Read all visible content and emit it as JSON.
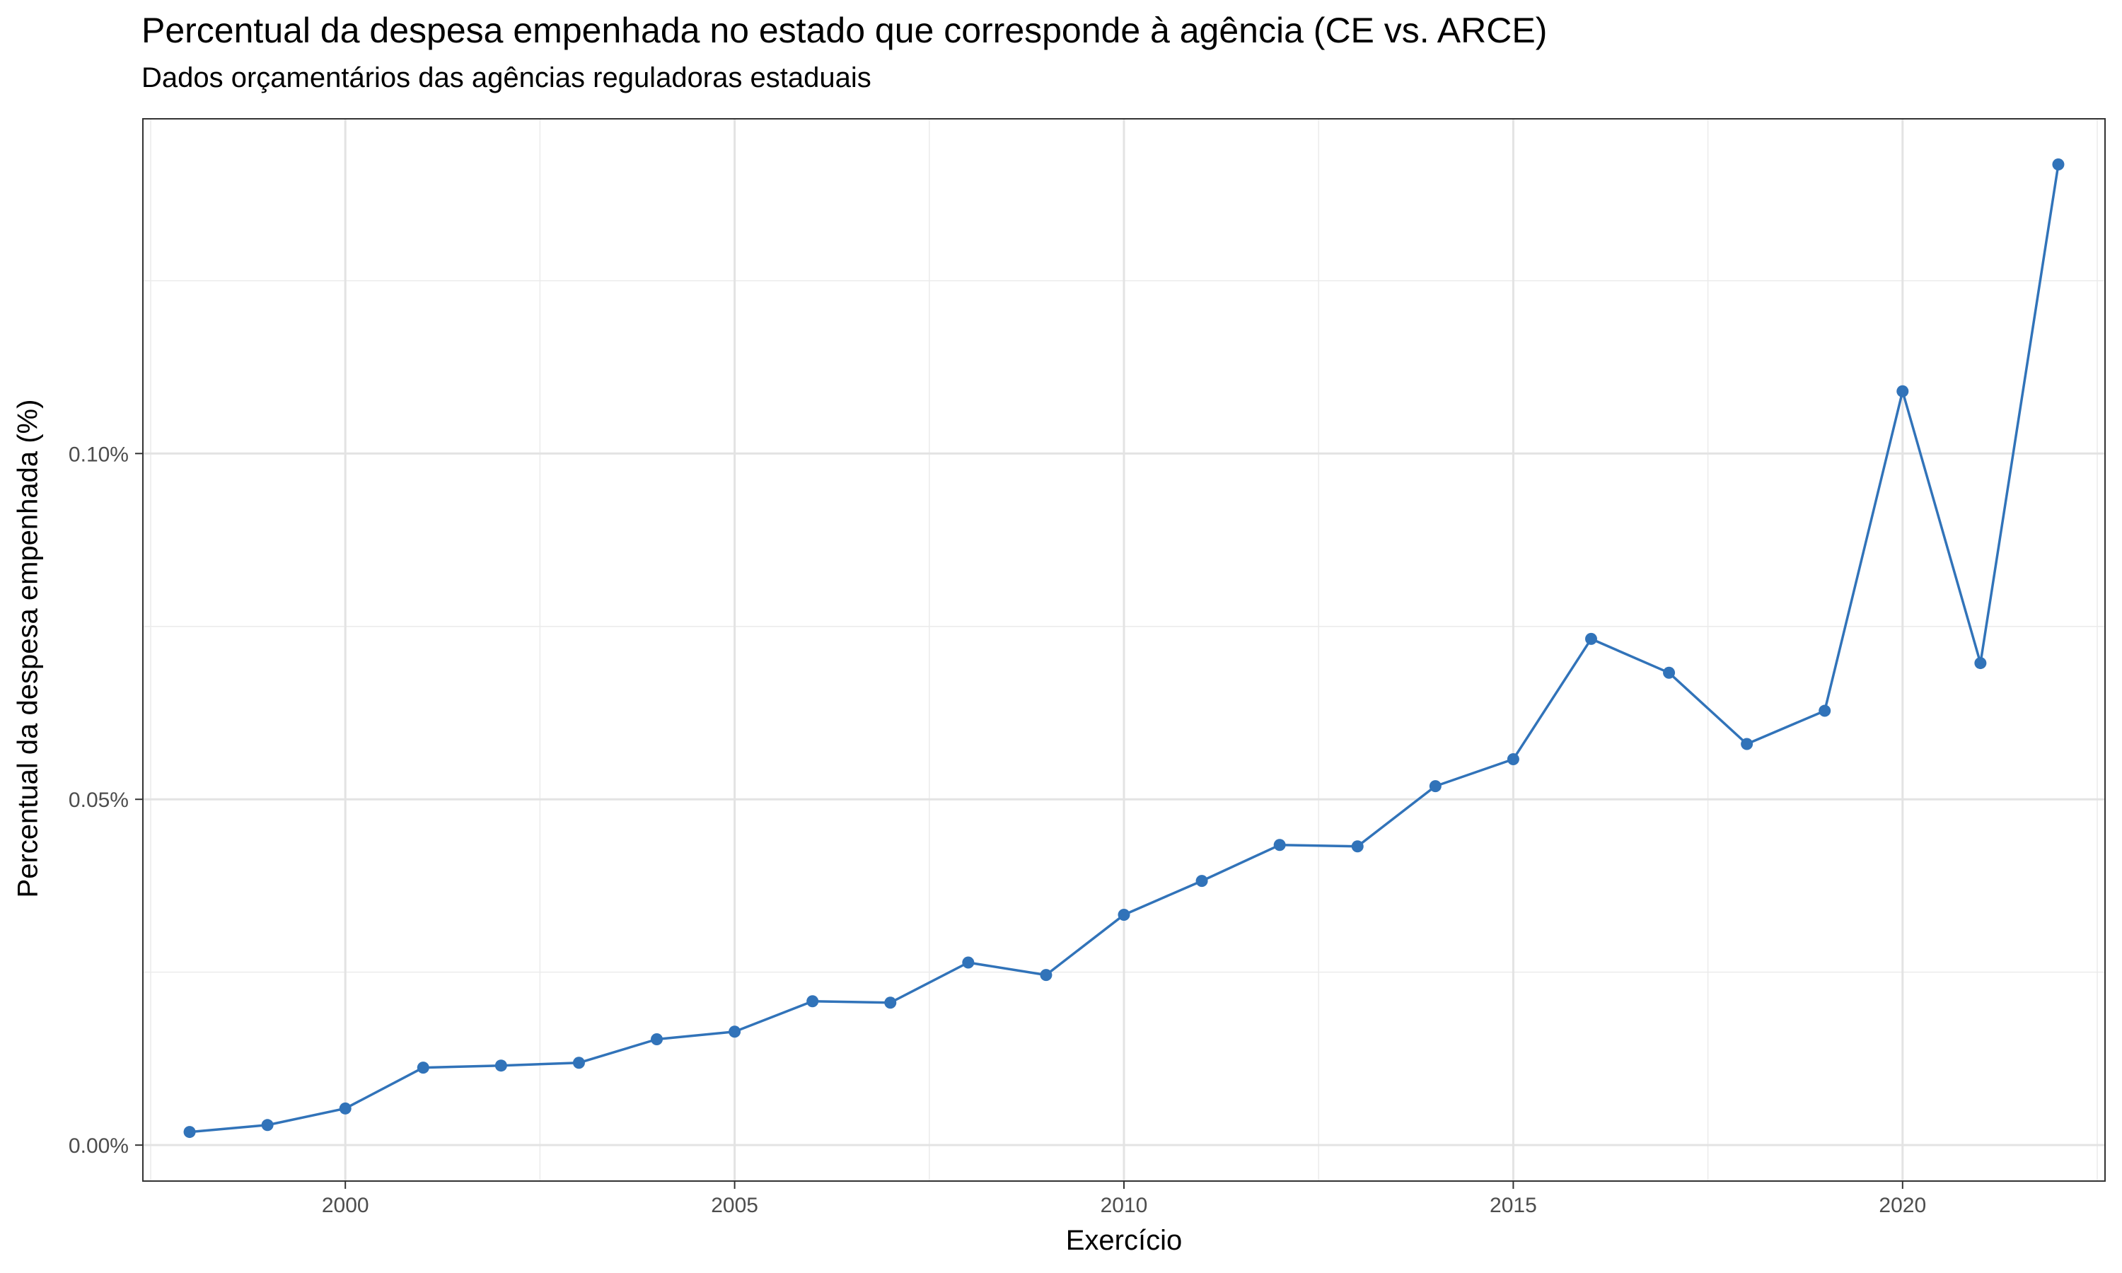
{
  "chart_data": {
    "type": "line",
    "title": "Percentual da despesa empenhada no estado que corresponde à agência (CE vs. ARCE)",
    "subtitle": "Dados orçamentários das agências reguladoras estaduais",
    "xlabel": "Exercício",
    "ylabel": "Percentual da despesa empenhada (%)",
    "x_ticks": [
      2000,
      2005,
      2010,
      2015,
      2020
    ],
    "x_tick_labels": [
      "2000",
      "2005",
      "2010",
      "2015",
      "2020"
    ],
    "y_ticks": [
      0,
      0.05,
      0.1
    ],
    "y_tick_labels": [
      "0.00%",
      "0.05%",
      "0.10%"
    ],
    "xlim": [
      1997.4,
      2022.6
    ],
    "ylim": [
      -0.0052,
      0.1484
    ],
    "grid": true,
    "series": [
      {
        "color": "#3173b9",
        "x": [
          1998,
          1999,
          2000,
          2001,
          2002,
          2003,
          2004,
          2005,
          2006,
          2007,
          2008,
          2009,
          2010,
          2011,
          2012,
          2013,
          2014,
          2015,
          2016,
          2017,
          2018,
          2019,
          2020,
          2021,
          2022
        ],
        "values": [
          0.0019,
          0.0029,
          0.0053,
          0.0112,
          0.0115,
          0.0119,
          0.0153,
          0.0164,
          0.0208,
          0.0206,
          0.0264,
          0.0246,
          0.0333,
          0.0382,
          0.0434,
          0.0432,
          0.0519,
          0.0558,
          0.0732,
          0.0683,
          0.058,
          0.0628,
          0.109,
          0.0697,
          0.1418
        ]
      }
    ]
  }
}
